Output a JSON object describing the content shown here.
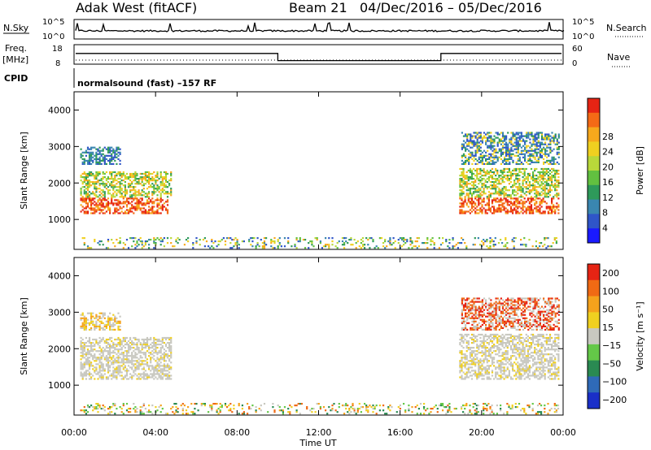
{
  "header": {
    "radar_title": "Adak West (fitACF)",
    "beam_label": "Beam 21",
    "date_range": "04/Dec/2016 – 05/Dec/2016"
  },
  "top_panels": {
    "nsky": {
      "left_label": "N.Sky",
      "left_ticks": [
        "10^5",
        "10^0"
      ],
      "right_label": "N.Search",
      "right_ticks": [
        "10^5",
        "10^0"
      ]
    },
    "freq": {
      "left_label_1": "Freq.",
      "left_label_2": "[MHz]",
      "left_ticks": [
        "18",
        "8"
      ],
      "right_label": "Nave",
      "right_ticks": [
        "60",
        "0"
      ],
      "step_series_mhz": [
        {
          "from_hour": 0,
          "to_hour": 10.0,
          "value": 14
        },
        {
          "from_hour": 10.0,
          "to_hour": 18.0,
          "value": 10
        },
        {
          "from_hour": 18.0,
          "to_hour": 24,
          "value": 14
        }
      ]
    },
    "cpid": {
      "label": "CPID",
      "text": "normalsound (fast) –157 RF"
    }
  },
  "chart_data": [
    {
      "type": "heatmap",
      "name": "power",
      "ylabel": "Slant Range [km]",
      "xlabel": "Time UT",
      "x_ticks": [
        "00:00",
        "04:00",
        "08:00",
        "12:00",
        "16:00",
        "20:00",
        "00:00"
      ],
      "xlim_hours": [
        0,
        24
      ],
      "y_ticks": [
        1000,
        2000,
        3000,
        4000
      ],
      "ylim_km": [
        180,
        4500
      ],
      "colorbar": {
        "label": "Power [dB]",
        "ticks": [
          "4",
          "8",
          "12",
          "16",
          "20",
          "24",
          "28"
        ],
        "colors": [
          "#1a1aff",
          "#2f55c8",
          "#3a86b0",
          "#2e9a5a",
          "#62c040",
          "#b9d83a",
          "#f0d020",
          "#f7a81c",
          "#f46a16",
          "#e62414"
        ]
      },
      "regions": [
        {
          "t0": 0.3,
          "t1": 4.6,
          "r0": 1150,
          "r1": 1600,
          "palette": [
            7,
            8,
            9,
            9,
            8
          ]
        },
        {
          "t0": 0.3,
          "t1": 4.8,
          "r0": 1600,
          "r1": 2300,
          "palette": [
            3,
            4,
            5,
            6,
            7
          ]
        },
        {
          "t0": 0.3,
          "t1": 2.3,
          "r0": 2500,
          "r1": 3000,
          "palette": [
            1,
            2,
            3
          ]
        },
        {
          "t0": 18.9,
          "t1": 23.8,
          "r0": 1150,
          "r1": 1600,
          "palette": [
            7,
            8,
            9,
            9,
            8
          ]
        },
        {
          "t0": 18.9,
          "t1": 23.8,
          "r0": 1600,
          "r1": 2400,
          "palette": [
            3,
            4,
            5,
            6,
            7
          ]
        },
        {
          "t0": 19.0,
          "t1": 23.8,
          "r0": 2500,
          "r1": 3400,
          "palette": [
            1,
            2,
            3,
            6
          ]
        },
        {
          "t0": 0.3,
          "t1": 23.8,
          "r0": 200,
          "r1": 500,
          "palette": [
            1,
            2,
            3,
            4,
            5,
            6,
            7
          ]
        }
      ]
    },
    {
      "type": "heatmap",
      "name": "velocity",
      "ylabel": "Slant Range [km]",
      "xlabel": "Time UT",
      "x_ticks": [
        "00:00",
        "04:00",
        "08:00",
        "12:00",
        "16:00",
        "20:00",
        "00:00"
      ],
      "xlim_hours": [
        0,
        24
      ],
      "y_ticks": [
        1000,
        2000,
        3000,
        4000
      ],
      "ylim_km": [
        180,
        4500
      ],
      "colorbar": {
        "label": "Velocity [m s⁻¹]",
        "ticks": [
          "200",
          "100",
          "50",
          "15",
          "−15",
          "−50",
          "−100",
          "−200"
        ],
        "colors": [
          "#1a2fc8",
          "#2f6ab8",
          "#2a8a52",
          "#64c848",
          "#c8c8c0",
          "#f0d020",
          "#f5a21c",
          "#f06a14",
          "#e62414"
        ]
      },
      "regions": [
        {
          "t0": 0.3,
          "t1": 4.8,
          "r0": 1150,
          "r1": 2300,
          "palette": [
            4,
            4,
            4,
            4,
            5
          ]
        },
        {
          "t0": 0.3,
          "t1": 2.3,
          "r0": 2500,
          "r1": 3000,
          "palette": [
            4,
            5,
            6
          ]
        },
        {
          "t0": 18.9,
          "t1": 23.8,
          "r0": 1150,
          "r1": 2400,
          "palette": [
            4,
            4,
            4,
            4,
            5
          ]
        },
        {
          "t0": 19.0,
          "t1": 23.8,
          "r0": 2500,
          "r1": 3400,
          "palette": [
            4,
            7,
            8
          ]
        },
        {
          "t0": 0.3,
          "t1": 23.8,
          "r0": 200,
          "r1": 500,
          "palette": [
            3,
            4,
            5,
            6,
            7,
            2
          ]
        }
      ]
    }
  ]
}
